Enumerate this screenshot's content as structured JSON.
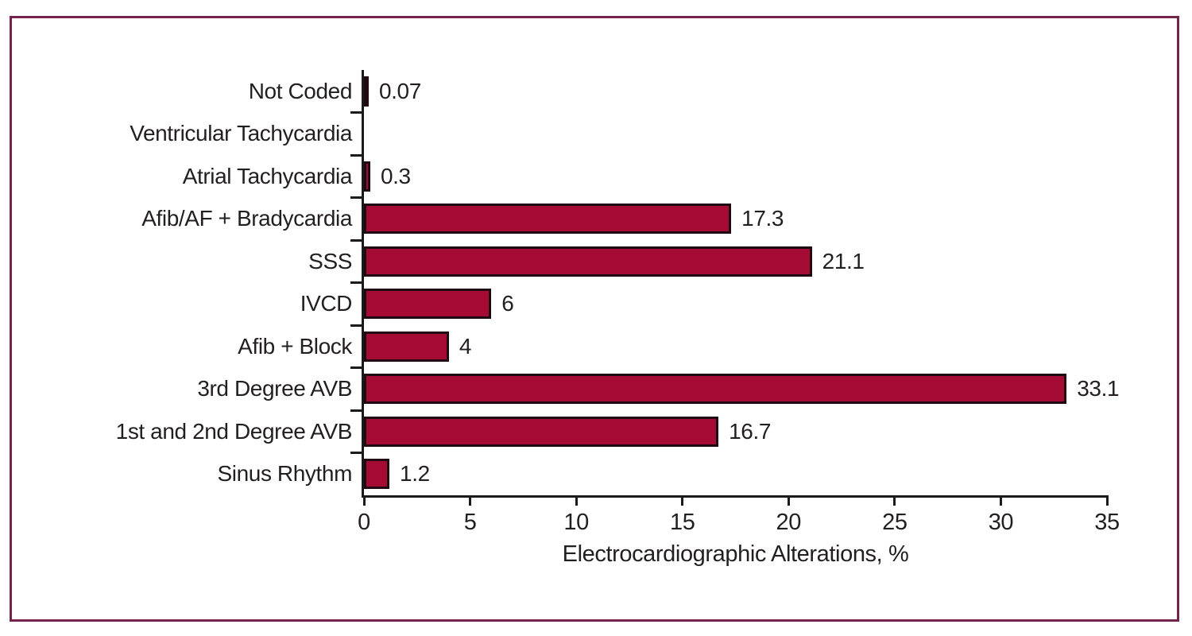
{
  "figure": {
    "frame_color": "#74234B",
    "background": "#FFFFFF"
  },
  "chart_data": {
    "type": "bar",
    "orientation": "horizontal",
    "title": "",
    "xlabel": "Electrocardiographic Alterations, %",
    "ylabel": "",
    "xlim": [
      0,
      35
    ],
    "xticks": [
      0,
      5,
      10,
      15,
      20,
      25,
      30,
      35
    ],
    "grid": false,
    "legend": false,
    "bar_color": "#A50B35",
    "bar_border_color": "#1F0A14",
    "axis_color": "#1A1A1A",
    "text_color": "#231F20",
    "categories": [
      "Not Coded",
      "Ventricular Tachycardia",
      "Atrial Tachycardia",
      "Afib/AF + Bradycardia",
      "SSS",
      "IVCD",
      "Afib + Block",
      "3rd Degree AVB",
      "1st and 2nd Degree AVB",
      "Sinus Rhythm"
    ],
    "values": [
      0.07,
      null,
      0.3,
      17.3,
      21.1,
      6,
      4,
      33.1,
      16.7,
      1.2
    ],
    "bar_labels": [
      "0.07",
      "",
      "0.3",
      "17.3",
      "21.1",
      "6",
      "4",
      "33.1",
      "16.7",
      "1.2"
    ]
  }
}
